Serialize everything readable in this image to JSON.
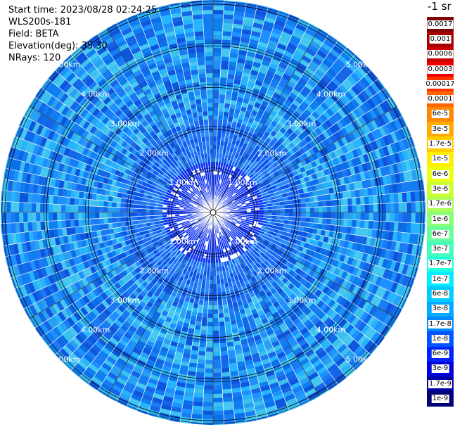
{
  "info": {
    "start_time": "Start time: 2023/08/28 02:24:25",
    "station": "WLS200s-181",
    "field": "Field: BETA",
    "elevation": "Elevation(deg): 35.30",
    "nrays": "NRays: 120"
  },
  "colorbar": {
    "units": "-1 sr",
    "labels": [
      "0.0017",
      "0.001",
      "0.0006",
      "0.0003",
      "0.00017",
      "0.0001",
      "6e-5",
      "3e-5",
      "1.7e-5",
      "1e-5",
      "6e-6",
      "3e-6",
      "1.7e-6",
      "1e-6",
      "6e-7",
      "3e-7",
      "1.7e-7",
      "1e-7",
      "6e-8",
      "3e-8",
      "1.7e-8",
      "1e-8",
      "6e-9",
      "3e-9",
      "1.7e-9",
      "1e-9"
    ],
    "colors": [
      "#7f0000",
      "#a50000",
      "#cc0000",
      "#ee0000",
      "#ff3300",
      "#ff6600",
      "#ff8800",
      "#ffaa00",
      "#ffcc00",
      "#ffee00",
      "#eeff10",
      "#ccff33",
      "#aaff55",
      "#88ff77",
      "#66ff99",
      "#44ffbb",
      "#22ffdd",
      "#00eeff",
      "#00ccff",
      "#00aaff",
      "#0088ff",
      "#0055ff",
      "#0022ff",
      "#0000dd",
      "#0000aa",
      "#000077"
    ]
  },
  "chart_data": {
    "type": "heatmap",
    "projection": "polar PPI",
    "range_rings_km": [
      1,
      2,
      3,
      4,
      5
    ],
    "ring_labels": [
      "1.00km",
      "2.00km",
      "3.00km",
      "4.00km",
      "5.00km"
    ],
    "n_rays": 120,
    "field": "BETA",
    "dominant_color": "#1e90ff"
  }
}
